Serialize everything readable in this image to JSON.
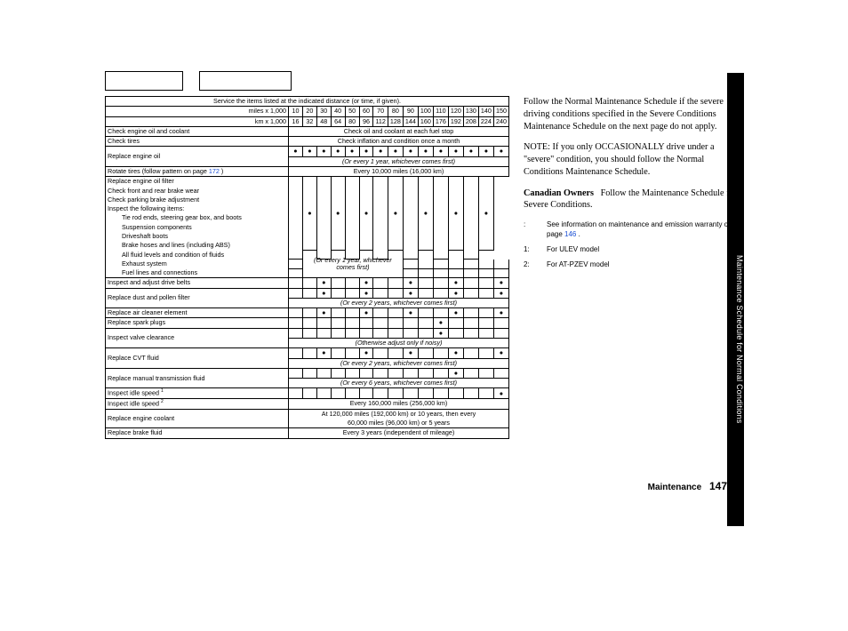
{
  "header": {
    "service_note": "Service the items listed at the indicated distance (or time, if given).",
    "miles_label": "miles x 1,000",
    "km_label": "km x 1,000",
    "miles": [
      "10",
      "20",
      "30",
      "40",
      "50",
      "60",
      "70",
      "80",
      "90",
      "100",
      "110",
      "120",
      "130",
      "140",
      "150"
    ],
    "km": [
      "16",
      "32",
      "48",
      "64",
      "80",
      "96",
      "112",
      "128",
      "144",
      "160",
      "176",
      "192",
      "208",
      "224",
      "240"
    ]
  },
  "rows": {
    "check_oil_coolant": "Check engine oil and coolant",
    "check_oil_coolant_note": "Check oil and coolant at each fuel stop",
    "check_tires": "Check tires",
    "check_tires_note": "Check inflation and condition once a month",
    "replace_oil": "Replace engine oil",
    "replace_oil_note": "(Or every 1 year, whichever comes first)",
    "rotate_tires_a": "Rotate tires (follow pattern on page ",
    "rotate_tires_link": "172",
    "rotate_tires_b": " )",
    "rotate_tires_note": "Every 10,000 miles (16,000 km)",
    "replace_oil_filter": "Replace engine oil filter",
    "check_brake_wear": "Check front and rear brake wear",
    "check_parking_brake": "Check parking brake adjustment",
    "inspect_items": "Inspect the following items:",
    "tie_rod": "Tie rod ends, steering gear box, and boots",
    "suspension": "Suspension components",
    "driveshaft": "Driveshaft boots",
    "driveshaft_note": "(Or every 1 year, whichever comes first)",
    "brake_hoses": "Brake hoses and lines (including ABS)",
    "fluid_levels": "All fluid levels and condition of fluids",
    "exhaust": "Exhaust system",
    "fuel_lines": "Fuel lines and connections",
    "drive_belts": "Inspect and adjust drive belts",
    "dust_filter": "Replace dust and pollen filter",
    "dust_filter_note": "(Or every 2 years, whichever comes first)",
    "air_cleaner": "Replace air cleaner element",
    "spark_plugs": "Replace spark plugs",
    "valve_clearance": "Inspect valve clearance",
    "valve_note": "(Otherwise adjust only if noisy)",
    "cvt_fluid": "Replace CVT fluid",
    "cvt_note": "(Or every 2 years, whichever comes first)",
    "manual_trans": "Replace manual transmission fluid",
    "manual_note": "(Or every 6 years, whichever comes first)",
    "idle1": "Inspect idle speed ",
    "idle2": "Inspect idle speed ",
    "sup1": "1",
    "sup2": "2",
    "idle2_note": "Every 160,000 miles (256,000 km)",
    "coolant": "Replace engine coolant",
    "coolant_note1": "At 120,000 miles (192,000 km) or 10 years, then every",
    "coolant_note2": "60,000 miles (96,000 km) or 5 years",
    "brake_fluid": "Replace brake fluid",
    "brake_fluid_note": "Every 3 years (independent of mileage)"
  },
  "dot": "●",
  "text": {
    "p1": "Follow the Normal Maintenance Schedule if the severe driving conditions specified in the Severe Conditions Maintenance Schedule on the next page do not apply.",
    "p2a": "NOTE: If you only OCCASIONALLY drive under a \"severe\" condition, you should follow the Normal Conditions Maintenance Schedule.",
    "p3_bold": "Canadian Owners",
    "p3_rest": "Follow the Maintenance Schedule for Severe Conditions.",
    "note_colon": ":",
    "note_colon_text_a": "See information on maintenance and emission warranty on page ",
    "note_colon_link": "146",
    "note_colon_text_b": " .",
    "note1_k": "1:",
    "note1_v": "For ULEV model",
    "note2_k": "2:",
    "note2_v": "For AT-PZEV model"
  },
  "side_tab": "Maintenance Schedule for Normal Conditions",
  "footer_label": "Maintenance",
  "footer_page": "147",
  "style": {
    "link_color": "#1a4fd4",
    "tab_bg": "#000000",
    "tab_fg": "#ffffff"
  }
}
